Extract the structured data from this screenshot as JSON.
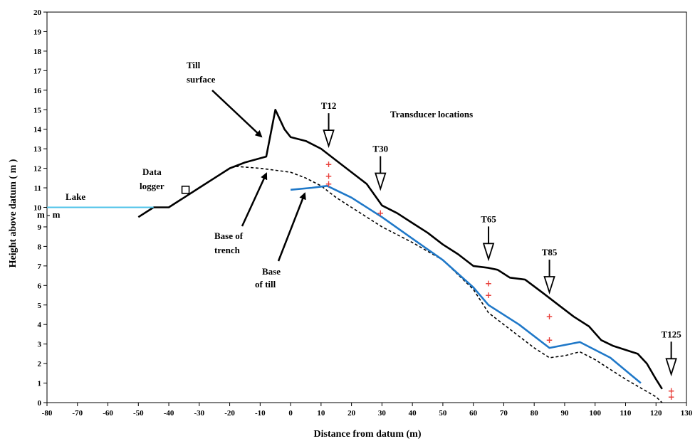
{
  "chart_data": {
    "type": "line",
    "xlabel": "Distance from datum  (m)",
    "ylabel": "Height above datum  ( m )",
    "xlim": [
      -80,
      130
    ],
    "ylim": [
      0,
      20
    ],
    "x_ticks": [
      -80,
      -70,
      -60,
      -50,
      -40,
      -30,
      -20,
      -10,
      0,
      10,
      20,
      30,
      40,
      50,
      60,
      70,
      80,
      90,
      100,
      110,
      120,
      130
    ],
    "y_ticks": [
      0,
      1,
      2,
      3,
      4,
      5,
      6,
      7,
      8,
      9,
      10,
      11,
      12,
      13,
      14,
      15,
      16,
      17,
      18,
      19,
      20
    ],
    "grid": false,
    "series": [
      {
        "style": "solid-black",
        "color": "#000000",
        "points": [
          [
            -50,
            9.5
          ],
          [
            -45,
            10
          ],
          [
            -40,
            10
          ],
          [
            -35,
            10.5
          ],
          [
            -30,
            11
          ],
          [
            -25,
            11.5
          ],
          [
            -20,
            12
          ],
          [
            -15,
            12.3
          ],
          [
            -8,
            12.6
          ],
          [
            -5,
            15
          ],
          [
            -2,
            14
          ],
          [
            0,
            13.6
          ],
          [
            5,
            13.4
          ],
          [
            10,
            13.0
          ],
          [
            15,
            12.4
          ],
          [
            20,
            11.8
          ],
          [
            25,
            11.2
          ],
          [
            30,
            10.1
          ],
          [
            35,
            9.7
          ],
          [
            40,
            9.2
          ],
          [
            45,
            8.7
          ],
          [
            50,
            8.1
          ],
          [
            55,
            7.6
          ],
          [
            60,
            7.0
          ],
          [
            65,
            6.9
          ],
          [
            68,
            6.8
          ],
          [
            72,
            6.4
          ],
          [
            77,
            6.3
          ],
          [
            83,
            5.6
          ],
          [
            88,
            5.0
          ],
          [
            93,
            4.4
          ],
          [
            98,
            3.9
          ],
          [
            102,
            3.2
          ],
          [
            106,
            2.9
          ],
          [
            110,
            2.7
          ],
          [
            114,
            2.5
          ],
          [
            117,
            2.0
          ],
          [
            120,
            1.2
          ],
          [
            122,
            0.7
          ]
        ]
      },
      {
        "style": "dashed-black",
        "color": "#000000",
        "points": [
          [
            -18,
            12.1
          ],
          [
            -10,
            12.0
          ],
          [
            0,
            11.8
          ],
          [
            5,
            11.5
          ],
          [
            10,
            11.1
          ],
          [
            15,
            10.5
          ],
          [
            20,
            10.0
          ],
          [
            25,
            9.5
          ],
          [
            30,
            9.0
          ],
          [
            40,
            8.2
          ],
          [
            50,
            7.3
          ],
          [
            60,
            5.8
          ],
          [
            65,
            4.6
          ],
          [
            70,
            4.0
          ],
          [
            80,
            2.8
          ],
          [
            85,
            2.3
          ],
          [
            90,
            2.4
          ],
          [
            95,
            2.6
          ],
          [
            100,
            2.2
          ],
          [
            110,
            1.2
          ],
          [
            120,
            0.3
          ],
          [
            122,
            0
          ]
        ]
      },
      {
        "style": "solid-blue",
        "color": "#1f78c8",
        "points": [
          [
            0,
            10.9
          ],
          [
            7,
            11.0
          ],
          [
            12,
            11.1
          ],
          [
            20,
            10.5
          ],
          [
            30,
            9.5
          ],
          [
            40,
            8.4
          ],
          [
            50,
            7.3
          ],
          [
            60,
            5.9
          ],
          [
            65,
            5.0
          ],
          [
            75,
            4.0
          ],
          [
            85,
            2.8
          ],
          [
            95,
            3.1
          ],
          [
            105,
            2.3
          ],
          [
            115,
            1.0
          ]
        ]
      },
      {
        "style": "solid-cyan",
        "color": "#4fc3e8",
        "points": [
          [
            -80,
            10
          ],
          [
            -45,
            10
          ]
        ]
      }
    ],
    "square_marker": {
      "x": -34.5,
      "y": 10.9
    },
    "transducers": [
      {
        "label": "T12",
        "x": 12.5,
        "head_y": 13.0,
        "plus_y": [
          12.2,
          11.6,
          11.2
        ]
      },
      {
        "label": "T30",
        "x": 29.5,
        "head_y": 10.8,
        "plus_y": [
          9.7
        ]
      },
      {
        "label": "T65",
        "x": 65,
        "head_y": 7.2,
        "plus_y": [
          6.1,
          5.5
        ]
      },
      {
        "label": "T85",
        "x": 85,
        "head_y": 5.5,
        "plus_y": [
          4.4,
          3.2
        ]
      },
      {
        "label": "T125",
        "x": 125,
        "head_y": 1.3,
        "plus_y": [
          0.6,
          0.3
        ]
      }
    ],
    "annotations": {
      "lake": "Lake",
      "m_m": "m - m",
      "data_logger_1": "Data",
      "data_logger_2": "logger",
      "till_surface_1": "Till",
      "till_surface_2": "surface",
      "base_trench_1": "Base of",
      "base_trench_2": "trench",
      "base_till_1": "Base",
      "base_till_2": "of till",
      "transducer_locations": "Transducer locations"
    }
  }
}
